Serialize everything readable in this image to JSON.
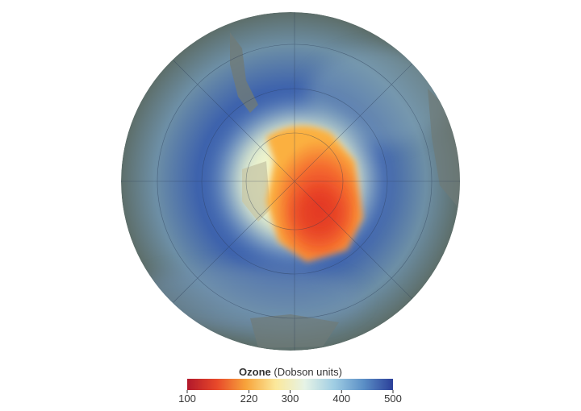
{
  "colorbar": {
    "title": "Ozone",
    "units": "(Dobson units)",
    "lim": [
      100,
      500
    ],
    "ticks": [
      100,
      220,
      300,
      400,
      500
    ],
    "colors": [
      "#b2182b",
      "#e8482a",
      "#f7a43b",
      "#fbe89a",
      "#e6f3e6",
      "#9fcde3",
      "#5b8fc6",
      "#2b3f99"
    ]
  }
}
